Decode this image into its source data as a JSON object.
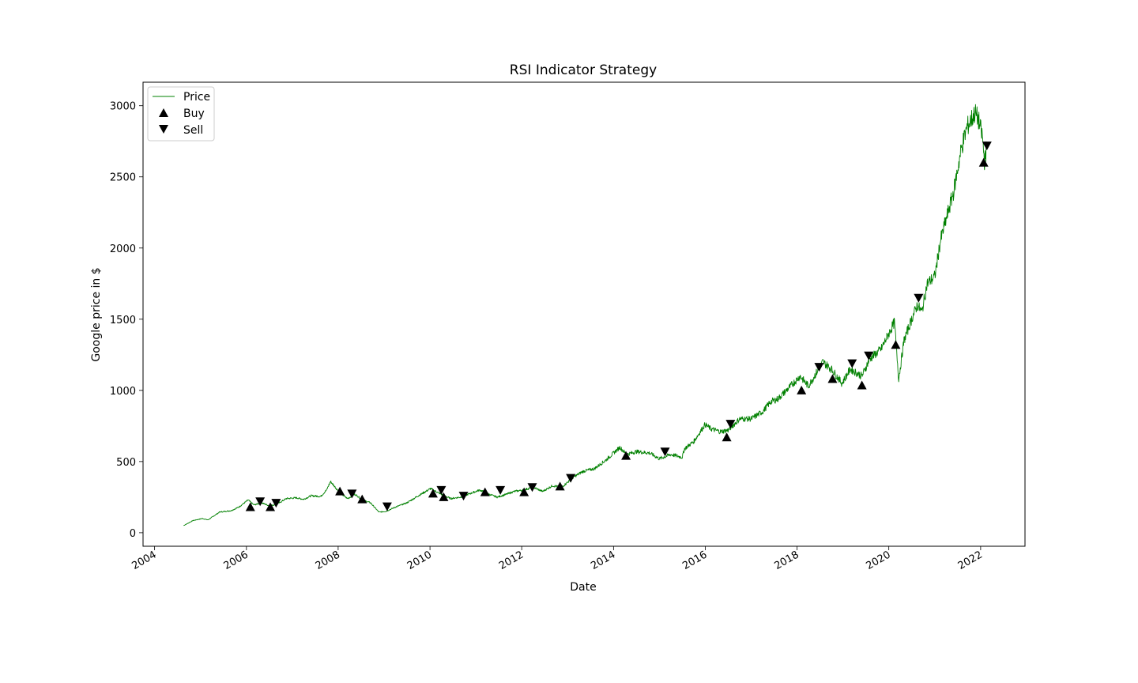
{
  "chart_data": {
    "type": "line",
    "title": "RSI Indicator Strategy",
    "xlabel": "Date",
    "ylabel": "Google price in $",
    "xlim": [
      "2003-10-01",
      "2022-12-20"
    ],
    "ylim": [
      -95,
      3165
    ],
    "x_ticks": [
      "2004",
      "2006",
      "2008",
      "2010",
      "2012",
      "2014",
      "2016",
      "2018",
      "2020",
      "2022"
    ],
    "y_ticks": [
      0,
      500,
      1000,
      1500,
      2000,
      2500,
      3000
    ],
    "grid": false,
    "legend_position": "upper-left",
    "colors": {
      "price": "#008000",
      "buy": "#000000",
      "sell": "#000000"
    },
    "series": [
      {
        "name": "Price",
        "type": "line",
        "x": [
          "2004-08-19",
          "2004-11-01",
          "2005-01-15",
          "2005-03-01",
          "2005-06-01",
          "2005-09-01",
          "2005-11-01",
          "2006-01-15",
          "2006-03-01",
          "2006-05-01",
          "2006-07-01",
          "2006-09-01",
          "2006-11-15",
          "2007-02-01",
          "2007-04-01",
          "2007-06-01",
          "2007-08-15",
          "2007-10-01",
          "2007-11-01",
          "2008-01-15",
          "2008-03-15",
          "2008-05-15",
          "2008-07-15",
          "2008-09-15",
          "2008-11-20",
          "2009-01-15",
          "2009-04-01",
          "2009-07-01",
          "2009-10-01",
          "2010-01-05",
          "2010-04-01",
          "2010-06-15",
          "2010-09-01",
          "2010-11-01",
          "2011-02-01",
          "2011-04-15",
          "2011-06-20",
          "2011-09-01",
          "2011-11-01",
          "2012-01-15",
          "2012-04-01",
          "2012-06-15",
          "2012-09-01",
          "2012-11-15",
          "2013-02-15",
          "2013-05-01",
          "2013-08-01",
          "2013-11-01",
          "2014-02-20",
          "2014-04-15",
          "2014-07-01",
          "2014-10-15",
          "2015-01-01",
          "2015-04-01",
          "2015-07-01",
          "2015-07-20",
          "2015-10-01",
          "2015-12-30",
          "2016-02-15",
          "2016-05-01",
          "2016-07-01",
          "2016-10-01",
          "2017-01-01",
          "2017-04-01",
          "2017-06-05",
          "2017-08-01",
          "2017-10-30",
          "2018-01-25",
          "2018-04-01",
          "2018-07-25",
          "2018-10-01",
          "2018-12-24",
          "2019-03-01",
          "2019-06-01",
          "2019-08-01",
          "2019-11-01",
          "2020-02-15",
          "2020-03-20",
          "2020-05-01",
          "2020-07-01",
          "2020-08-15",
          "2020-09-20",
          "2020-11-01",
          "2021-01-01",
          "2021-02-15",
          "2021-04-01",
          "2021-06-01",
          "2021-08-01",
          "2021-09-15",
          "2021-11-18",
          "2021-12-15",
          "2022-01-15",
          "2022-02-01",
          "2022-02-15"
        ],
        "y": [
          50,
          85,
          100,
          90,
          145,
          155,
          180,
          230,
          195,
          210,
          190,
          200,
          240,
          245,
          235,
          260,
          255,
          300,
          360,
          280,
          240,
          270,
          230,
          210,
          145,
          150,
          180,
          210,
          260,
          310,
          270,
          240,
          250,
          270,
          300,
          270,
          250,
          270,
          290,
          300,
          320,
          290,
          330,
          320,
          390,
          430,
          450,
          510,
          600,
          550,
          570,
          560,
          520,
          550,
          530,
          590,
          640,
          760,
          730,
          710,
          720,
          800,
          800,
          850,
          920,
          940,
          1020,
          1100,
          1030,
          1200,
          1150,
          1050,
          1150,
          1100,
          1220,
          1290,
          1480,
          1080,
          1350,
          1500,
          1600,
          1550,
          1750,
          1800,
          2050,
          2200,
          2400,
          2700,
          2850,
          2950,
          2900,
          2780,
          2600,
          2700
        ]
      },
      {
        "name": "Buy",
        "type": "scatter",
        "marker": "triangle-up",
        "x": [
          "2006-02-01",
          "2006-07-10",
          "2008-01-15",
          "2008-07-10",
          "2010-01-25",
          "2010-04-20",
          "2011-03-15",
          "2012-01-20",
          "2012-11-01",
          "2014-04-10",
          "2016-06-20",
          "2018-02-05",
          "2018-10-10",
          "2019-06-01",
          "2020-02-25",
          "2022-01-25"
        ],
        "y": [
          180,
          180,
          290,
          235,
          275,
          250,
          285,
          285,
          325,
          540,
          670,
          1000,
          1080,
          1035,
          1320,
          2600
        ]
      },
      {
        "name": "Sell",
        "type": "scatter",
        "marker": "triangle-down",
        "x": [
          "2006-04-20",
          "2006-08-25",
          "2008-04-20",
          "2009-01-25",
          "2010-04-01",
          "2010-09-25",
          "2011-07-15",
          "2012-03-25",
          "2013-01-25",
          "2015-02-15",
          "2016-07-20",
          "2018-06-25",
          "2019-03-15",
          "2019-07-25",
          "2020-08-25",
          "2022-02-20"
        ],
        "y": [
          220,
          210,
          275,
          185,
          300,
          260,
          300,
          320,
          385,
          570,
          765,
          1165,
          1190,
          1245,
          1650,
          2720
        ]
      }
    ]
  }
}
